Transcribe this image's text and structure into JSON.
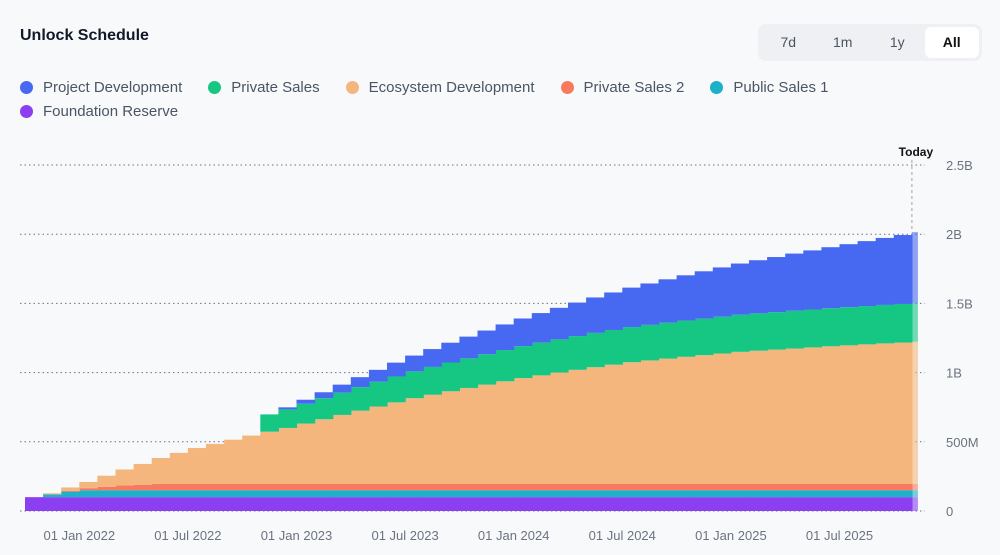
{
  "header": {
    "title": "Unlock Schedule"
  },
  "range_buttons": [
    {
      "label": "7d",
      "active": false
    },
    {
      "label": "1m",
      "active": false
    },
    {
      "label": "1y",
      "active": false
    },
    {
      "label": "All",
      "active": true
    }
  ],
  "chart_data": {
    "type": "area",
    "stacked": true,
    "step": true,
    "title": "",
    "xlabel": "",
    "ylabel": "",
    "ylim": [
      0,
      2500000000
    ],
    "grid": true,
    "legend": "top-left",
    "today_label": "Today",
    "y_ticks": [
      {
        "value": 0,
        "label": "0"
      },
      {
        "value": 500000000,
        "label": "500M"
      },
      {
        "value": 1000000000,
        "label": "1B"
      },
      {
        "value": 1500000000,
        "label": "1.5B"
      },
      {
        "value": 2000000000,
        "label": "2B"
      },
      {
        "value": 2500000000,
        "label": "2.5B"
      }
    ],
    "x_ticks": [
      "01 Jan 2022",
      "01 Jul 2022",
      "01 Jan 2023",
      "01 Jul 2023",
      "01 Jan 2024",
      "01 Jul 2024",
      "01 Jan 2025",
      "01 Jul 2025"
    ],
    "value_unit": "millions",
    "x": [
      "Oct 2021",
      "Nov 2021",
      "Dec 2021",
      "Jan 2022",
      "Feb 2022",
      "Mar 2022",
      "Apr 2022",
      "May 2022",
      "Jun 2022",
      "Jul 2022",
      "Aug 2022",
      "Sep 2022",
      "Oct 2022",
      "Nov 2022",
      "Dec 2022",
      "Jan 2023",
      "Feb 2023",
      "Mar 2023",
      "Apr 2023",
      "May 2023",
      "Jun 2023",
      "Jul 2023",
      "Aug 2023",
      "Sep 2023",
      "Oct 2023",
      "Nov 2023",
      "Dec 2023",
      "Jan 2024",
      "Feb 2024",
      "Mar 2024",
      "Apr 2024",
      "May 2024",
      "Jun 2024",
      "Jul 2024",
      "Aug 2024",
      "Sep 2024",
      "Oct 2024",
      "Nov 2024",
      "Dec 2024",
      "Jan 2025",
      "Feb 2025",
      "Mar 2025",
      "Apr 2025",
      "May 2025",
      "Jun 2025",
      "Jul 2025",
      "Aug 2025",
      "Sep 2025",
      "Oct 2025",
      "Nov 2025"
    ],
    "series": [
      {
        "name": "Foundation Reserve",
        "color": "#8b3ff0",
        "values": [
          100,
          100,
          100,
          100,
          100,
          100,
          100,
          100,
          100,
          100,
          100,
          100,
          100,
          100,
          100,
          100,
          100,
          100,
          100,
          100,
          100,
          100,
          100,
          100,
          100,
          100,
          100,
          100,
          100,
          100,
          100,
          100,
          100,
          100,
          100,
          100,
          100,
          100,
          100,
          100,
          100,
          100,
          100,
          100,
          100,
          100,
          100,
          100,
          100,
          100
        ]
      },
      {
        "name": "Public Sales 1",
        "color": "#1fb0c9",
        "values": [
          0,
          20,
          40,
          50,
          50,
          50,
          50,
          50,
          50,
          50,
          50,
          50,
          50,
          50,
          50,
          50,
          50,
          50,
          50,
          50,
          50,
          50,
          50,
          50,
          50,
          50,
          50,
          50,
          50,
          50,
          50,
          50,
          50,
          50,
          50,
          50,
          50,
          50,
          50,
          50,
          50,
          50,
          50,
          50,
          50,
          50,
          50,
          50,
          50,
          50
        ]
      },
      {
        "name": "Private Sales 2",
        "color": "#f87a5e",
        "values": [
          0,
          0,
          5,
          15,
          25,
          35,
          40,
          45,
          45,
          45,
          45,
          45,
          45,
          45,
          45,
          45,
          45,
          45,
          45,
          45,
          45,
          45,
          45,
          45,
          45,
          45,
          45,
          45,
          45,
          45,
          45,
          45,
          45,
          45,
          45,
          45,
          45,
          45,
          45,
          45,
          45,
          45,
          45,
          45,
          45,
          45,
          45,
          45,
          45,
          45
        ]
      },
      {
        "name": "Ecosystem Development",
        "color": "#f4b67c",
        "values": [
          0,
          8,
          25,
          45,
          80,
          115,
          150,
          188,
          225,
          260,
          290,
          320,
          350,
          378,
          405,
          437,
          468,
          499,
          530,
          560,
          590,
          620,
          645,
          670,
          694,
          718,
          742,
          765,
          785,
          805,
          825,
          844,
          862,
          880,
          893,
          906,
          919,
          931,
          943,
          955,
          963,
          971,
          979,
          987,
          995,
          1002,
          1009,
          1016,
          1022,
          1028
        ]
      },
      {
        "name": "Private Sales",
        "color": "#16c784",
        "values": [
          0,
          0,
          0,
          0,
          0,
          0,
          0,
          0,
          0,
          0,
          0,
          0,
          0,
          125,
          134,
          143,
          152,
          161,
          170,
          179,
          187,
          194,
          201,
          208,
          214,
          220,
          226,
          231,
          236,
          240,
          244,
          248,
          251,
          254,
          257,
          260,
          262,
          264,
          266,
          268,
          270,
          271,
          273,
          274,
          275,
          276,
          277,
          278,
          279,
          280
        ]
      },
      {
        "name": "Project Development",
        "color": "#4769f2",
        "values": [
          0,
          0,
          0,
          0,
          0,
          0,
          0,
          0,
          0,
          0,
          0,
          0,
          0,
          0,
          15,
          29,
          43,
          58,
          72,
          86,
          100,
          114,
          129,
          143,
          157,
          171,
          185,
          200,
          214,
          228,
          242,
          256,
          271,
          285,
          299,
          313,
          327,
          342,
          356,
          370,
          384,
          398,
          413,
          427,
          441,
          455,
          469,
          484,
          498,
          512
        ]
      }
    ]
  },
  "legend": [
    {
      "label": "Project Development",
      "color": "#4769f2"
    },
    {
      "label": "Private Sales",
      "color": "#16c784"
    },
    {
      "label": "Ecosystem Development",
      "color": "#f4b67c"
    },
    {
      "label": "Private Sales 2",
      "color": "#f87a5e"
    },
    {
      "label": "Public Sales 1",
      "color": "#1fb0c9"
    },
    {
      "label": "Foundation Reserve",
      "color": "#8b3ff0"
    }
  ]
}
